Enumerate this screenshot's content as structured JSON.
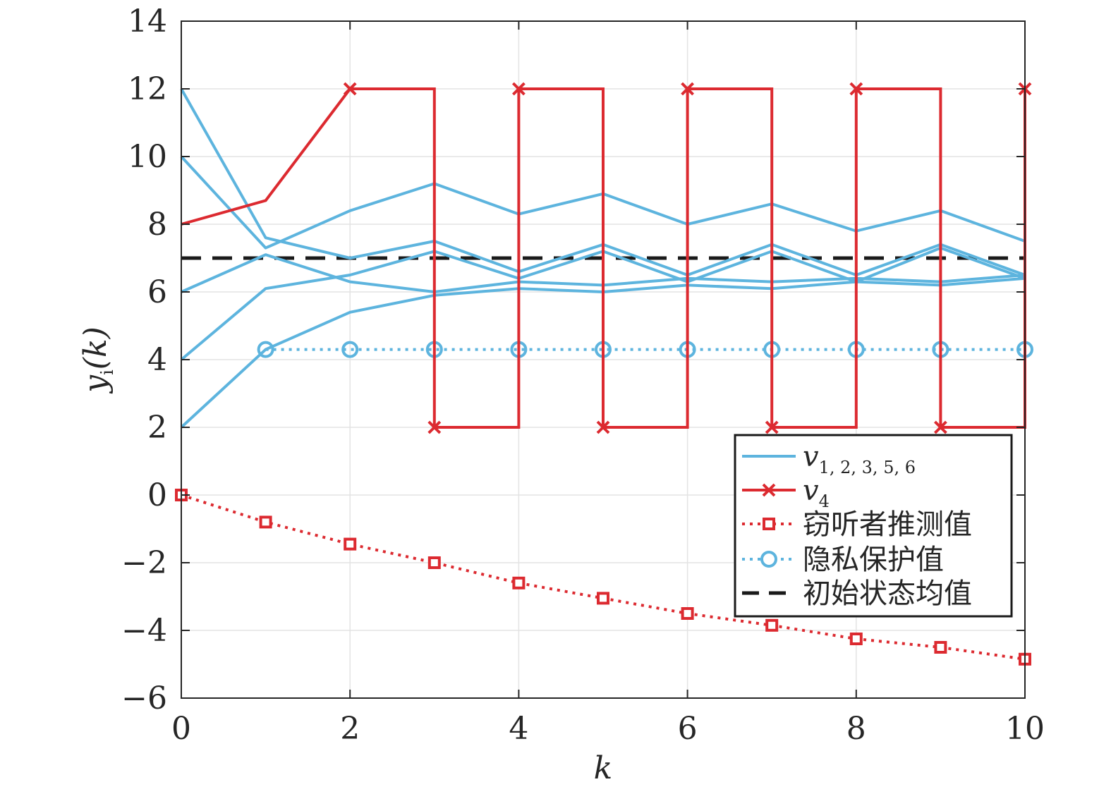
{
  "chart_data": {
    "type": "line",
    "title": "",
    "xlabel": "k",
    "ylabel_main": "y",
    "ylabel_sub": "i",
    "ylabel_arg": "(k)",
    "xlim": [
      0,
      10
    ],
    "ylim": [
      -6,
      14
    ],
    "xticks": [
      0,
      2,
      4,
      6,
      8,
      10
    ],
    "yticks": [
      -6,
      -4,
      -2,
      0,
      2,
      4,
      6,
      8,
      10,
      12,
      14
    ],
    "grid": true,
    "legend_position": "bottom-right",
    "colors": {
      "normal": "#5db4de",
      "attacker": "#dc2a30",
      "mean": "#1a1a1a"
    },
    "x": [
      0,
      1,
      2,
      3,
      4,
      5,
      6,
      7,
      8,
      9,
      10
    ],
    "normal_series": [
      {
        "values": [
          12,
          7.6,
          7.0,
          7.5,
          6.6,
          7.4,
          6.5,
          7.4,
          6.5,
          7.4,
          6.5
        ]
      },
      {
        "values": [
          10,
          7.3,
          8.4,
          9.2,
          8.3,
          8.9,
          8.0,
          8.6,
          7.8,
          8.4,
          7.5
        ]
      },
      {
        "values": [
          6,
          7.1,
          6.3,
          6.0,
          6.3,
          6.2,
          6.4,
          6.3,
          6.4,
          6.3,
          6.5
        ]
      },
      {
        "values": [
          4,
          6.1,
          6.5,
          7.2,
          6.4,
          7.2,
          6.3,
          7.2,
          6.3,
          7.3,
          6.4
        ]
      },
      {
        "values": [
          2,
          4.3,
          5.4,
          5.9,
          6.1,
          6.0,
          6.2,
          6.1,
          6.3,
          6.2,
          6.4
        ]
      }
    ],
    "attacker_series": {
      "step_points": [
        [
          0,
          8
        ],
        [
          1,
          8.7
        ],
        [
          2,
          12
        ],
        [
          3,
          12
        ],
        [
          3,
          2
        ],
        [
          4,
          2
        ],
        [
          4,
          12
        ],
        [
          5,
          12
        ],
        [
          5,
          2
        ],
        [
          6,
          2
        ],
        [
          6,
          12
        ],
        [
          7,
          12
        ],
        [
          7,
          2
        ],
        [
          8,
          2
        ],
        [
          8,
          12
        ],
        [
          9,
          12
        ],
        [
          9,
          2
        ],
        [
          10,
          2
        ],
        [
          10,
          12
        ]
      ],
      "markers": [
        [
          2,
          12
        ],
        [
          3,
          2
        ],
        [
          4,
          12
        ],
        [
          5,
          2
        ],
        [
          6,
          12
        ],
        [
          7,
          2
        ],
        [
          8,
          12
        ],
        [
          9,
          2
        ],
        [
          10,
          12
        ]
      ]
    },
    "eavesdropper_series": {
      "values": [
        0,
        -0.8,
        -1.45,
        -2.0,
        -2.6,
        -3.05,
        -3.5,
        -3.85,
        -4.25,
        -4.5,
        -4.85
      ]
    },
    "privacy_series": {
      "x": [
        1,
        2,
        3,
        4,
        5,
        6,
        7,
        8,
        9,
        10
      ],
      "values": [
        4.3,
        4.3,
        4.3,
        4.3,
        4.3,
        4.3,
        4.3,
        4.3,
        4.3,
        4.3
      ]
    },
    "mean_value": 7,
    "legend": [
      {
        "main": "v",
        "sub": "1, 2, 3, 5, 6",
        "style": "normal"
      },
      {
        "main": "v",
        "sub": "4",
        "style": "attacker"
      },
      {
        "main": "窃听者推测值",
        "sub": "",
        "style": "eavesdropper"
      },
      {
        "main": "隐私保护值",
        "sub": "",
        "style": "privacy"
      },
      {
        "main": "初始状态均值",
        "sub": "",
        "style": "mean"
      }
    ]
  }
}
